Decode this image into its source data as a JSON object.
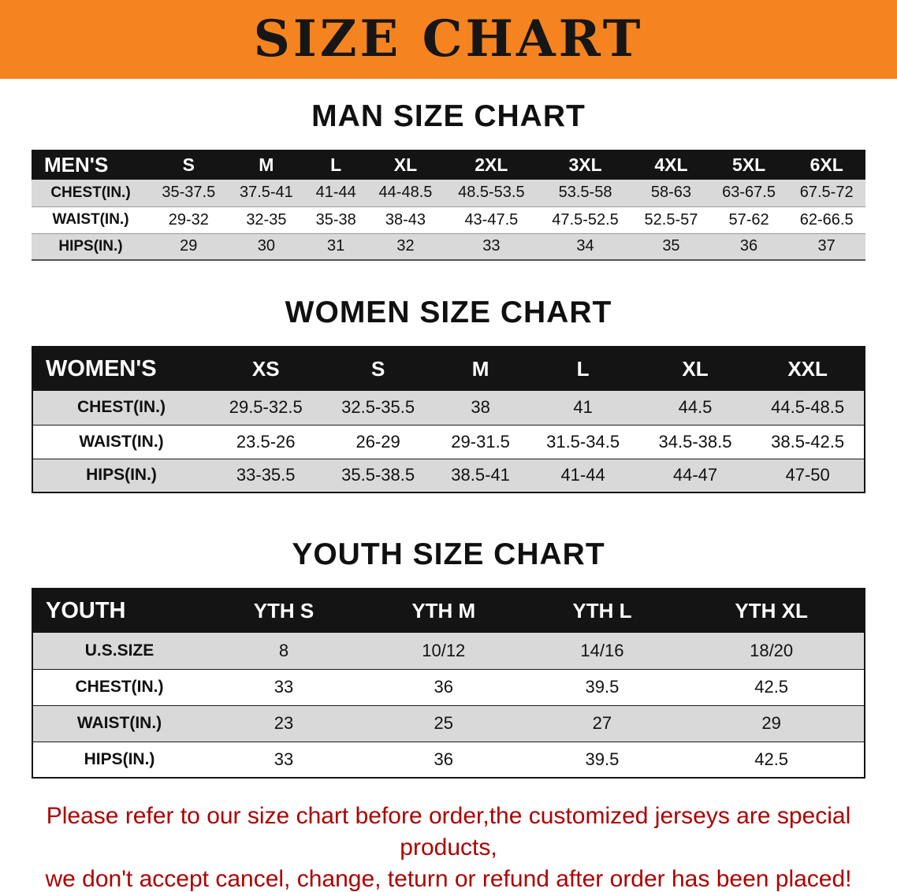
{
  "banner": {
    "title": "SIZE CHART"
  },
  "men": {
    "heading": "MAN SIZE CHART",
    "header": [
      "MEN'S",
      "S",
      "M",
      "L",
      "XL",
      "2XL",
      "3XL",
      "4XL",
      "5XL",
      "6XL"
    ],
    "rows": [
      {
        "label": "CHEST(IN.)",
        "values": [
          "35-37.5",
          "37.5-41",
          "41-44",
          "44-48.5",
          "48.5-53.5",
          "53.5-58",
          "58-63",
          "63-67.5",
          "67.5-72"
        ]
      },
      {
        "label": "WAIST(IN.)",
        "values": [
          "29-32",
          "32-35",
          "35-38",
          "38-43",
          "43-47.5",
          "47.5-52.5",
          "52.5-57",
          "57-62",
          "62-66.5"
        ]
      },
      {
        "label": "HIPS(IN.)",
        "values": [
          "29",
          "30",
          "31",
          "32",
          "33",
          "34",
          "35",
          "36",
          "37"
        ]
      }
    ]
  },
  "women": {
    "heading": "WOMEN SIZE CHART",
    "header": [
      "WOMEN'S",
      "XS",
      "S",
      "M",
      "L",
      "XL",
      "XXL"
    ],
    "rows": [
      {
        "label": "CHEST(IN.)",
        "values": [
          "29.5-32.5",
          "32.5-35.5",
          "38",
          "41",
          "44.5",
          "44.5-48.5"
        ]
      },
      {
        "label": "WAIST(IN.)",
        "values": [
          "23.5-26",
          "26-29",
          "29-31.5",
          "31.5-34.5",
          "34.5-38.5",
          "38.5-42.5"
        ]
      },
      {
        "label": "HIPS(IN.)",
        "values": [
          "33-35.5",
          "35.5-38.5",
          "38.5-41",
          "41-44",
          "44-47",
          "47-50"
        ]
      }
    ]
  },
  "youth": {
    "heading": "YOUTH SIZE CHART",
    "header": [
      "YOUTH",
      "YTH S",
      "YTH M",
      "YTH L",
      "YTH XL"
    ],
    "rows": [
      {
        "label": "U.S.SIZE",
        "values": [
          "8",
          "10/12",
          "14/16",
          "18/20"
        ]
      },
      {
        "label": "CHEST(IN.)",
        "values": [
          "33",
          "36",
          "39.5",
          "42.5"
        ]
      },
      {
        "label": "WAIST(IN.)",
        "values": [
          "23",
          "25",
          "27",
          "29"
        ]
      },
      {
        "label": "HIPS(IN.)",
        "values": [
          "33",
          "36",
          "39.5",
          "42.5"
        ]
      }
    ]
  },
  "disclaimer": {
    "line1": "Please refer to our size chart before order,the customized jerseys are special products,",
    "line2": "we don't accept cancel, change, teturn or refund after order has been placed!"
  },
  "colors": {
    "banner_bg": "#F5831F",
    "banner_text": "#161616",
    "table_header_bg": "#141414",
    "table_header_text": "#FFFFFF",
    "row_stripe": "#D9D9D9",
    "disclaimer_text": "#AE0000"
  }
}
